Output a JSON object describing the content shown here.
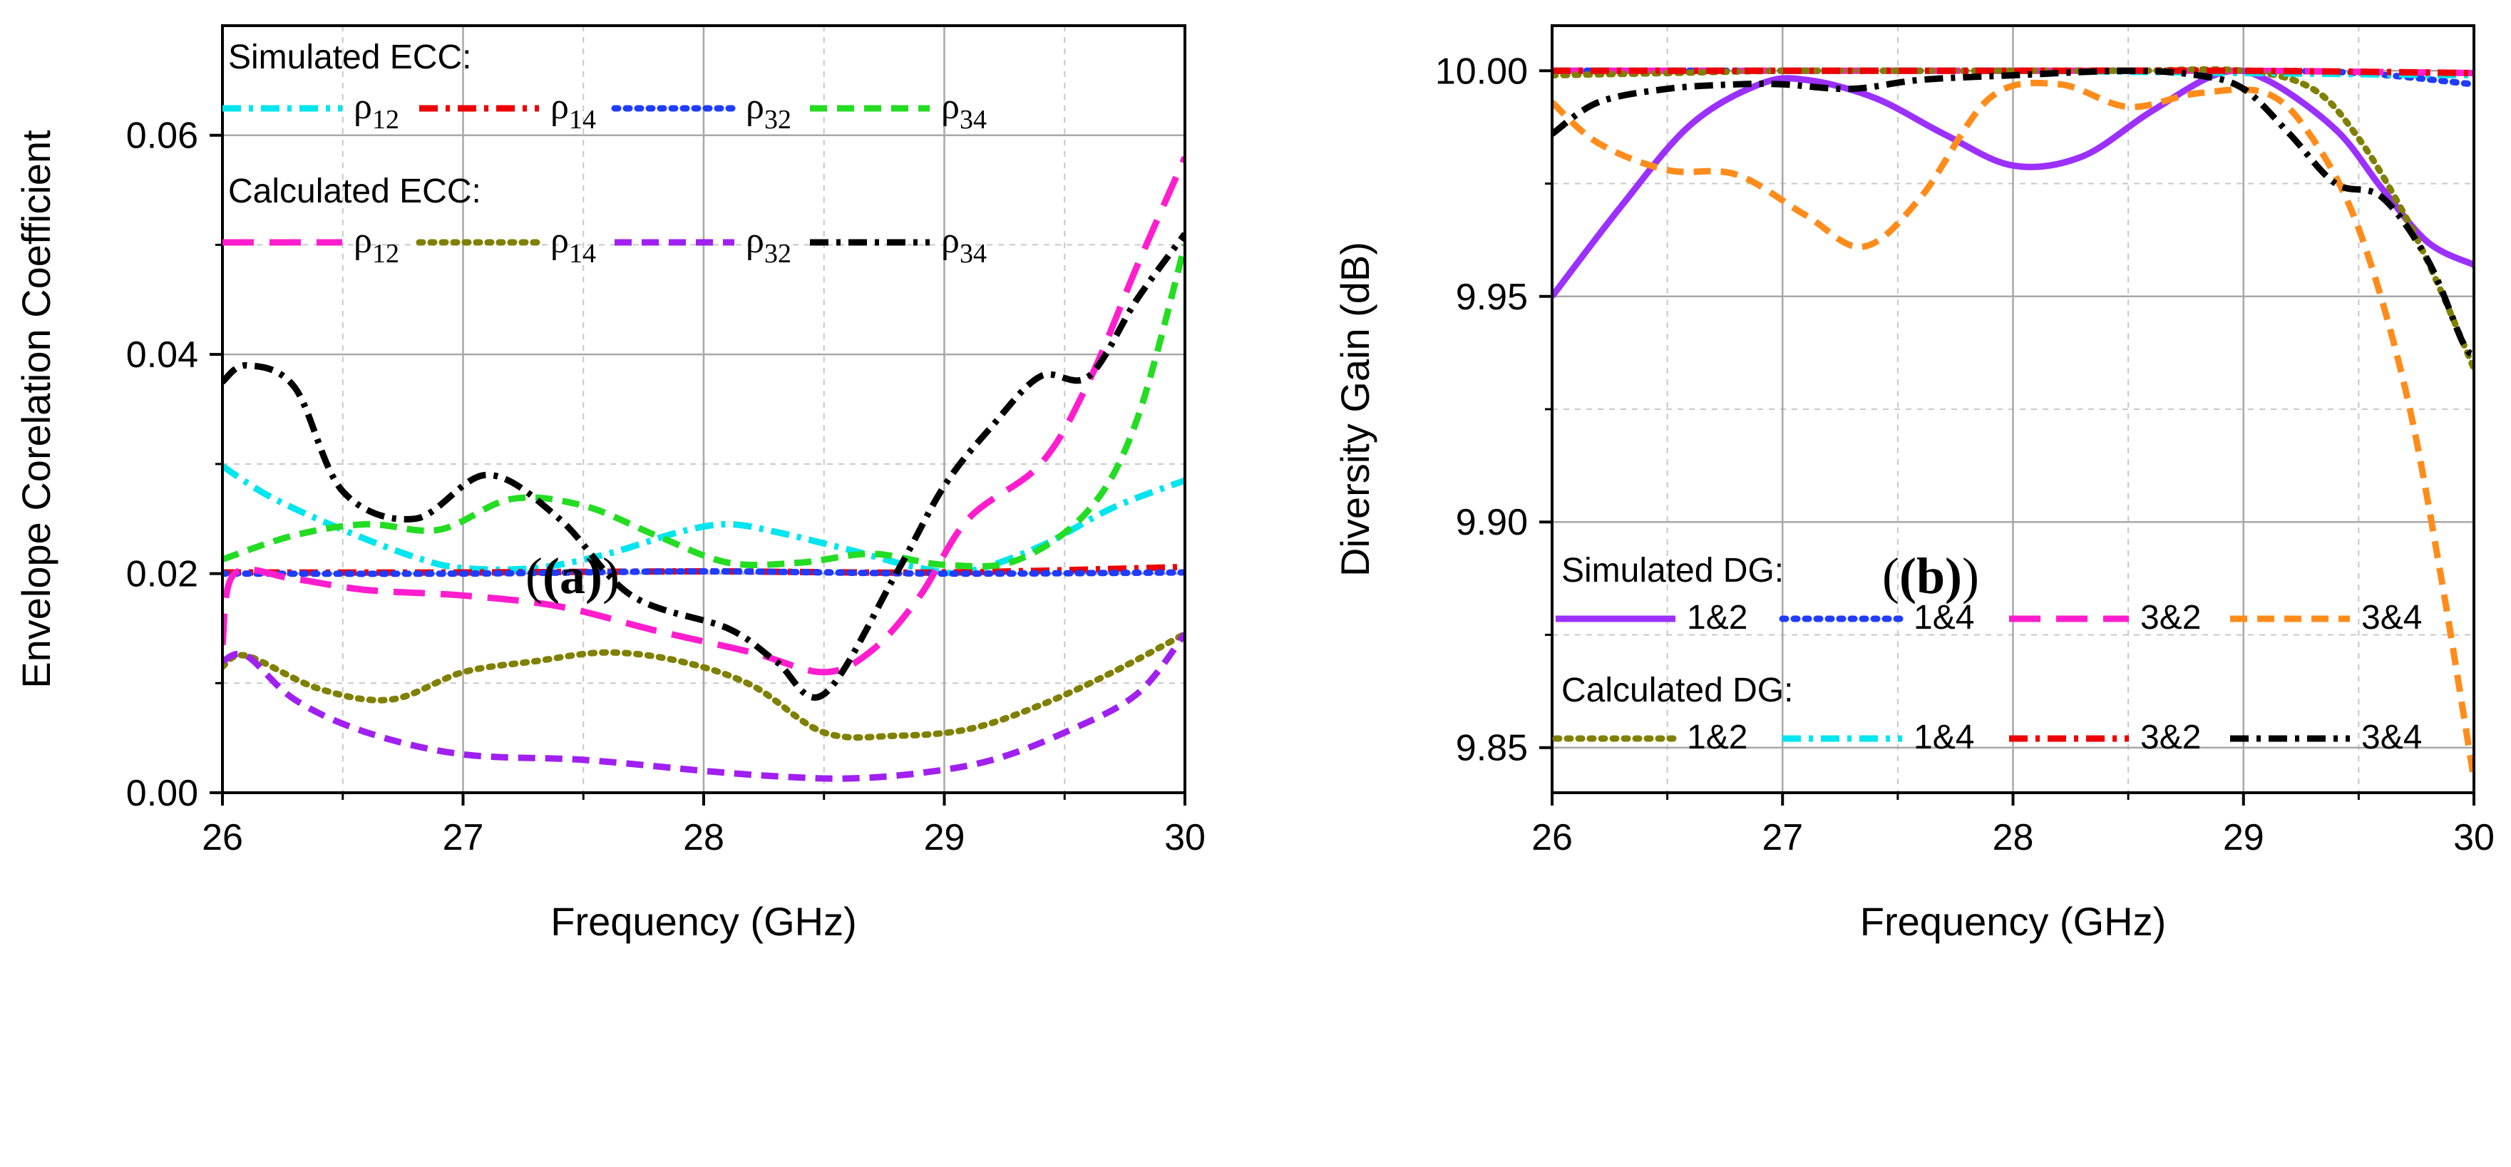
{
  "captions": [
    "(a)",
    "(b)"
  ],
  "chart_data": [
    {
      "type": "line",
      "xlabel": "Frequency (GHz)",
      "ylabel": "Envelope Corelation Coefficient",
      "xlim": [
        26,
        30
      ],
      "ylim": [
        0,
        0.07
      ],
      "xticks": [
        "26",
        "27",
        "28",
        "29",
        "30"
      ],
      "yticks": [
        "0.00",
        "0.02",
        "0.04",
        "0.06"
      ],
      "grid": true,
      "legend_groups": [
        "Simulated ECC:",
        "Calculated ECC:"
      ],
      "series": [
        {
          "name": "ρ12",
          "group": "Simulated ECC:",
          "color": "#00e5ee",
          "dash": "dashdot",
          "x": [
            26,
            26.2,
            26.5,
            26.8,
            27,
            27.3,
            27.6,
            27.9,
            28.1,
            28.3,
            28.6,
            28.9,
            29.1,
            29.4,
            29.7,
            30
          ],
          "y": [
            0.0298,
            0.027,
            0.024,
            0.0215,
            0.0205,
            0.0205,
            0.0218,
            0.0238,
            0.0245,
            0.0238,
            0.0222,
            0.0205,
            0.0202,
            0.0225,
            0.026,
            0.0285
          ]
        },
        {
          "name": "ρ14",
          "group": "Simulated ECC:",
          "color": "#ee0000",
          "dash": "dashdot",
          "x": [
            26,
            27,
            28,
            29,
            30
          ],
          "y": [
            0.0201,
            0.0201,
            0.0202,
            0.0201,
            0.0206
          ]
        },
        {
          "name": "ρ32",
          "group": "Simulated ECC:",
          "color": "#1f3cff",
          "dash": "dot",
          "x": [
            26,
            27,
            28,
            29,
            30
          ],
          "y": [
            0.02,
            0.02,
            0.0202,
            0.02,
            0.0201
          ]
        },
        {
          "name": "ρ34",
          "group": "Simulated ECC:",
          "color": "#22dd22",
          "dash": "dash",
          "x": [
            26,
            26.3,
            26.6,
            26.9,
            27.2,
            27.5,
            27.8,
            28.1,
            28.4,
            28.7,
            29,
            29.3,
            29.6,
            29.8,
            30
          ],
          "y": [
            0.0213,
            0.0235,
            0.0245,
            0.024,
            0.0268,
            0.0262,
            0.0235,
            0.021,
            0.021,
            0.0218,
            0.0208,
            0.0212,
            0.0258,
            0.034,
            0.05
          ]
        },
        {
          "name": "ρ12",
          "group": "Calculated ECC:",
          "color": "#ff1dce",
          "dash": "longdash",
          "x": [
            26,
            26.05,
            26.3,
            26.6,
            27,
            27.4,
            27.8,
            28.2,
            28.5,
            28.7,
            28.9,
            29.1,
            29.4,
            29.6,
            29.8,
            30
          ],
          "y": [
            0.0135,
            0.02,
            0.0195,
            0.0185,
            0.018,
            0.017,
            0.0148,
            0.0128,
            0.011,
            0.013,
            0.018,
            0.025,
            0.03,
            0.0375,
            0.048,
            0.058
          ]
        },
        {
          "name": "ρ14",
          "group": "Calculated ECC:",
          "color": "#808000",
          "dash": "dot",
          "x": [
            26,
            26.1,
            26.4,
            26.7,
            27,
            27.3,
            27.6,
            27.9,
            28.2,
            28.5,
            28.8,
            29.1,
            29.4,
            29.7,
            30
          ],
          "y": [
            0.0115,
            0.0125,
            0.0095,
            0.0085,
            0.011,
            0.012,
            0.0128,
            0.012,
            0.0098,
            0.0055,
            0.0052,
            0.0058,
            0.008,
            0.011,
            0.0145
          ]
        },
        {
          "name": "ρ32",
          "group": "Calculated ECC:",
          "color": "#a020f0",
          "dash": "dash",
          "x": [
            26,
            26.1,
            26.3,
            26.6,
            27,
            27.5,
            28,
            28.3,
            28.6,
            28.9,
            29.2,
            29.5,
            29.8,
            30
          ],
          "y": [
            0.012,
            0.0125,
            0.0085,
            0.0055,
            0.0035,
            0.003,
            0.002,
            0.0015,
            0.0013,
            0.0018,
            0.003,
            0.0055,
            0.009,
            0.0145
          ]
        },
        {
          "name": "ρ34",
          "group": "Calculated ECC:",
          "color": "#000000",
          "dash": "dashdot",
          "x": [
            26,
            26.1,
            26.3,
            26.5,
            26.8,
            27.1,
            27.4,
            27.7,
            28.1,
            28.3,
            28.5,
            28.8,
            29,
            29.2,
            29.4,
            29.6,
            29.8,
            30
          ],
          "y": [
            0.0375,
            0.039,
            0.037,
            0.0275,
            0.025,
            0.029,
            0.025,
            0.018,
            0.015,
            0.012,
            0.009,
            0.02,
            0.028,
            0.0335,
            0.038,
            0.038,
            0.045,
            0.051
          ]
        }
      ]
    },
    {
      "type": "line",
      "xlabel": "Frequency (GHz)",
      "ylabel": "Diversity Gain (dB)",
      "xlim": [
        26,
        30
      ],
      "ylim": [
        9.84,
        10.01
      ],
      "xticks": [
        "26",
        "27",
        "28",
        "29",
        "30"
      ],
      "yticks": [
        "9.85",
        "9.90",
        "9.95",
        "10.00"
      ],
      "grid": true,
      "legend_groups": [
        "Simulated DG:",
        "Calculated DG:"
      ],
      "series": [
        {
          "name": "1&2",
          "group": "Simulated DG:",
          "color": "#9b30ff",
          "dash": "solid",
          "x": [
            26,
            26.3,
            26.6,
            26.9,
            27.1,
            27.4,
            27.7,
            28,
            28.3,
            28.6,
            28.9,
            29.1,
            29.4,
            29.6,
            29.8,
            30
          ],
          "y": [
            9.95,
            9.97,
            9.988,
            9.997,
            9.998,
            9.994,
            9.986,
            9.979,
            9.981,
            9.991,
            9.9995,
            9.998,
            9.987,
            9.974,
            9.962,
            9.957
          ]
        },
        {
          "name": "1&4",
          "group": "Simulated DG:",
          "color": "#1f3cff",
          "dash": "dot",
          "x": [
            26,
            27,
            28,
            29,
            29.5,
            30
          ],
          "y": [
            10.0,
            10.0,
            10.0,
            10.0,
            9.9995,
            9.997
          ]
        },
        {
          "name": "3&2",
          "group": "Simulated DG:",
          "color": "#ff1dce",
          "dash": "longdash",
          "x": [
            26,
            27,
            28,
            29,
            30
          ],
          "y": [
            10.0,
            10.0,
            10.0,
            10.0,
            9.9995
          ]
        },
        {
          "name": "3&4",
          "group": "Simulated DG:",
          "color": "#ff8c1a",
          "dash": "dash",
          "x": [
            26,
            26.2,
            26.5,
            26.8,
            27.1,
            27.35,
            27.6,
            27.9,
            28.2,
            28.5,
            28.8,
            29.1,
            29.3,
            29.5,
            29.7,
            29.85,
            30
          ],
          "y": [
            9.993,
            9.984,
            9.978,
            9.977,
            9.968,
            9.961,
            9.972,
            9.994,
            9.997,
            9.992,
            9.995,
            9.995,
            9.985,
            9.965,
            9.93,
            9.89,
            9.843
          ]
        },
        {
          "name": "1&2",
          "group": "Calculated DG:",
          "color": "#808000",
          "dash": "dot",
          "x": [
            26,
            26.5,
            27,
            27.5,
            28,
            28.5,
            29,
            29.3,
            29.5,
            29.7,
            29.85,
            30
          ],
          "y": [
            9.999,
            9.9995,
            10.0,
            10.0,
            10.0,
            10.0,
            10.0,
            9.996,
            9.985,
            9.968,
            9.952,
            9.934
          ]
        },
        {
          "name": "1&4",
          "group": "Calculated DG:",
          "color": "#00e5ee",
          "dash": "dashdot",
          "x": [
            26,
            27,
            28,
            29,
            30
          ],
          "y": [
            10.0,
            10.0,
            10.0,
            9.9995,
            9.999
          ]
        },
        {
          "name": "3&2",
          "group": "Calculated DG:",
          "color": "#ee0000",
          "dash": "dashdot",
          "x": [
            26,
            27,
            28,
            29,
            30
          ],
          "y": [
            10.0,
            10.0,
            10.0,
            10.0,
            9.9995
          ]
        },
        {
          "name": "3&4",
          "group": "Calculated DG:",
          "color": "#000000",
          "dash": "dashdot",
          "x": [
            26,
            26.2,
            26.5,
            26.8,
            27,
            27.3,
            27.6,
            28,
            28.5,
            28.8,
            29,
            29.2,
            29.4,
            29.6,
            29.8,
            29.95,
            30
          ],
          "y": [
            9.986,
            9.993,
            9.996,
            9.997,
            9.997,
            9.996,
            9.998,
            9.999,
            10.0,
            9.999,
            9.996,
            9.986,
            9.975,
            9.972,
            9.958,
            9.94,
            9.937
          ]
        }
      ]
    }
  ]
}
